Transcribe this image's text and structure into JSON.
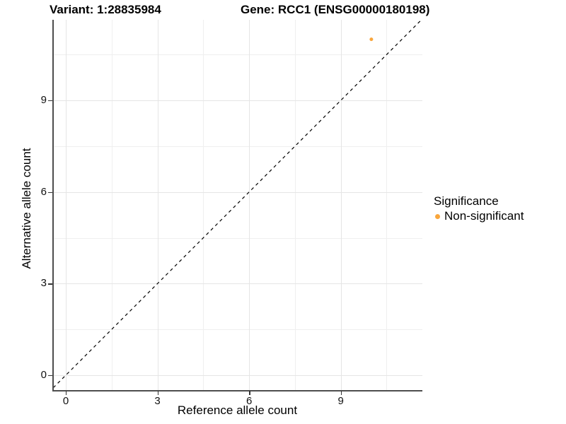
{
  "header": {
    "title_left": "Variant: 1:28835984",
    "title_right": "Gene: RCC1 (ENSG00000180198)"
  },
  "chart_data": {
    "type": "scatter",
    "title": "Variant: 1:28835984 / Gene: RCC1 (ENSG00000180198)",
    "xlabel": "Reference allele count",
    "ylabel": "Alternative allele count",
    "x_domain": [
      -0.44,
      11.67
    ],
    "y_domain": [
      -0.51,
      11.64
    ],
    "x_ticks": [
      0,
      3,
      6,
      9
    ],
    "y_ticks": [
      0,
      3,
      6,
      9
    ],
    "x_minor_ticks": [
      1.5,
      4.5,
      7.5,
      10.5
    ],
    "y_minor_ticks": [
      1.5,
      4.5,
      7.5,
      10.5
    ],
    "grid": true,
    "reference_line": {
      "slope": 1,
      "intercept": 0,
      "style": "dashed",
      "color": "#000000"
    },
    "series": [
      {
        "name": "Non-significant",
        "color": "#F9A63C",
        "point_radius": 2.5,
        "points": [
          {
            "x": 10,
            "y": 11
          }
        ]
      }
    ],
    "legend": {
      "title": "Significance",
      "position": "right",
      "items": [
        {
          "label": "Non-significant",
          "color": "#F9A63C"
        }
      ]
    },
    "style_colors": {
      "grid_major": "#e5e5e5",
      "grid_minor": "#efefef",
      "axis_line": "#4d4d4d",
      "tick": "#333333"
    }
  }
}
